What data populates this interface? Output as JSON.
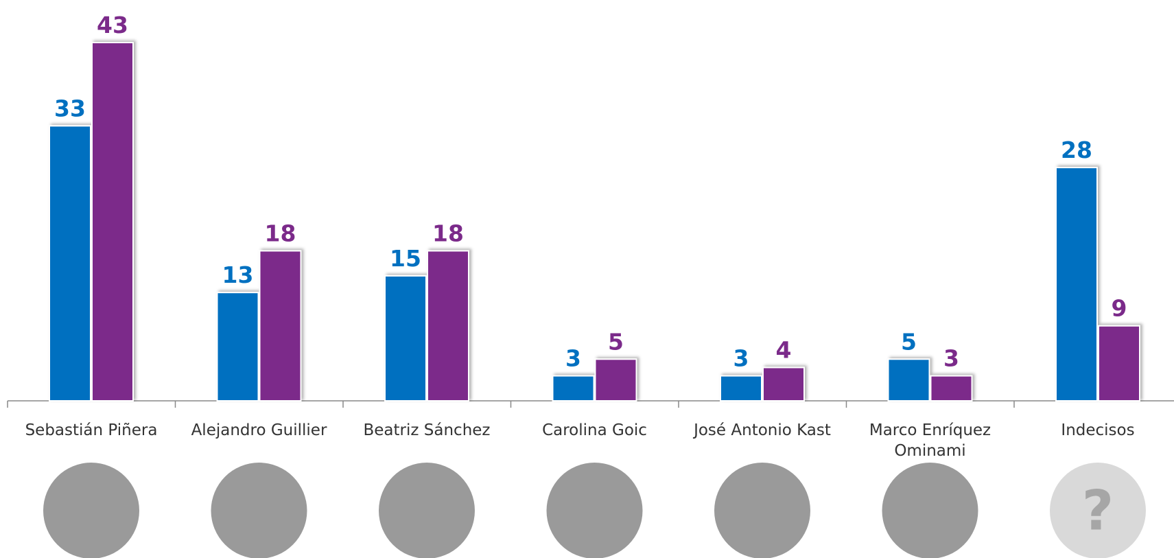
{
  "chart_data": {
    "type": "bar",
    "categories": [
      "Sebastián Piñera",
      "Alejandro Guillier",
      "Beatriz Sánchez",
      "Carolina Goic",
      "José Antonio Kast",
      "Marco Enríquez Ominami",
      "Indecisos"
    ],
    "series": [
      {
        "color": "#0070c0",
        "values": [
          33,
          13,
          15,
          3,
          3,
          5,
          28
        ]
      },
      {
        "color": "#7b2a8a",
        "values": [
          43,
          18,
          18,
          5,
          4,
          3,
          9
        ]
      }
    ],
    "placeholder_label": "?"
  }
}
